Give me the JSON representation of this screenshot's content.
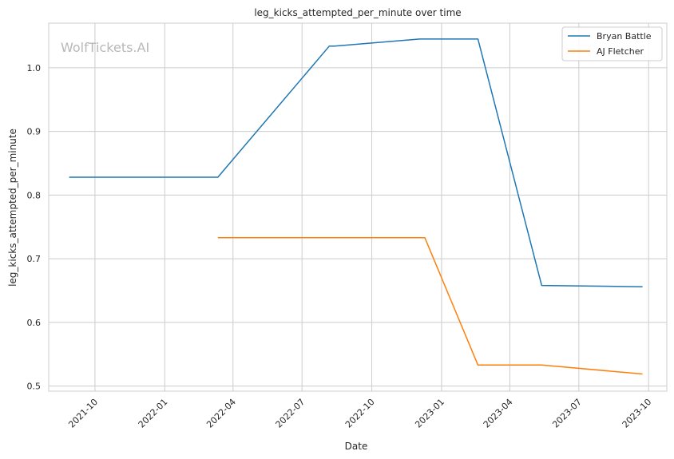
{
  "chart_data": {
    "type": "line",
    "title": "leg_kicks_attempted_per_minute over time",
    "xlabel": "Date",
    "ylabel": "leg_kicks_attempted_per_minute",
    "watermark": "WolfTickets.AI",
    "xlim": [
      "2021-08-01",
      "2023-10-25"
    ],
    "ylim": [
      0.492,
      1.07
    ],
    "x_ticks": [
      "2021-10",
      "2022-01",
      "2022-04",
      "2022-07",
      "2022-10",
      "2023-01",
      "2023-04",
      "2023-07",
      "2023-10"
    ],
    "y_ticks": [
      0.5,
      0.6,
      0.7,
      0.8,
      0.9,
      1.0
    ],
    "grid": true,
    "legend_position": "top-right",
    "series": [
      {
        "name": "Bryan Battle",
        "color": "#1f77b4",
        "points": [
          {
            "x": "2021-08-28",
            "y": 0.828
          },
          {
            "x": "2022-03-12",
            "y": 0.828
          },
          {
            "x": "2022-08-06",
            "y": 1.034
          },
          {
            "x": "2022-08-13",
            "y": 1.034
          },
          {
            "x": "2022-12-03",
            "y": 1.045
          },
          {
            "x": "2023-02-18",
            "y": 1.045
          },
          {
            "x": "2023-05-13",
            "y": 0.658
          },
          {
            "x": "2023-09-23",
            "y": 0.656
          }
        ]
      },
      {
        "name": "AJ Fletcher",
        "color": "#ff7f0e",
        "points": [
          {
            "x": "2022-03-12",
            "y": 0.733
          },
          {
            "x": "2022-12-10",
            "y": 0.733
          },
          {
            "x": "2023-02-18",
            "y": 0.533
          },
          {
            "x": "2023-05-13",
            "y": 0.533
          },
          {
            "x": "2023-09-23",
            "y": 0.519
          }
        ]
      }
    ]
  }
}
